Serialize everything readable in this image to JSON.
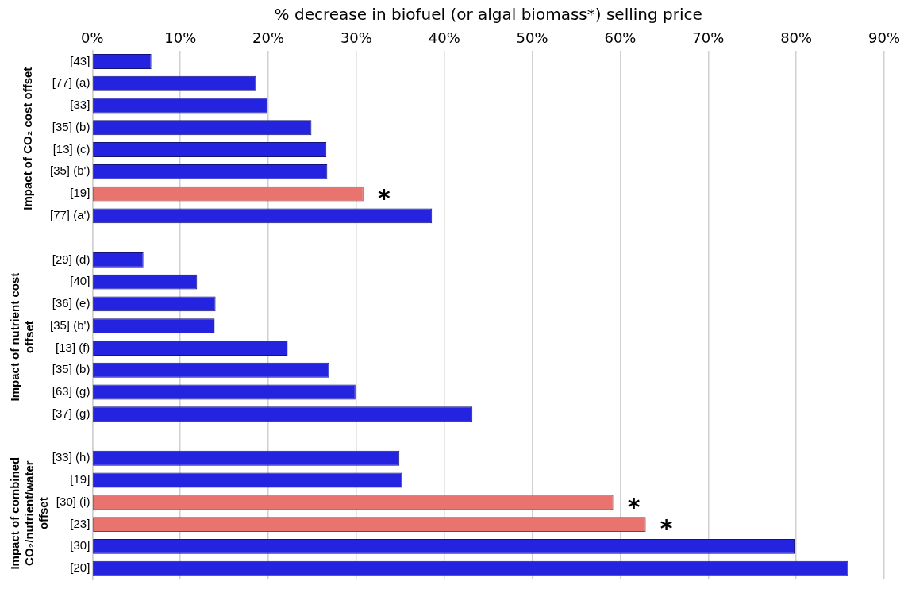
{
  "chart_data": {
    "type": "bar",
    "orientation": "horizontal",
    "xlabel": "% decrease in biofuel (or algal biomass*) selling price",
    "categories": [
      "[43]",
      "[77] (a)",
      "[33]",
      "[35] (b)",
      "[13] (c)",
      "[35] (b')",
      "[19]",
      "[77] (a')",
      null,
      "[29] (d)",
      "[40]",
      "[36] (e)",
      "[35] (b')",
      "[13] (f)",
      "[35] (b)",
      "[63] (g)",
      "[37] (g)",
      null,
      "[33] (h)",
      "[19]",
      "[30] (i)",
      "[23]",
      "[30]",
      "[20]"
    ],
    "values": [
      6.7,
      18.6,
      19.9,
      24.9,
      26.6,
      26.7,
      30.8,
      38.6,
      null,
      5.8,
      11.9,
      14.0,
      13.9,
      22.2,
      26.9,
      29.9,
      43.2,
      null,
      34.9,
      35.2,
      59.2,
      62.9,
      79.9,
      85.9
    ],
    "colors": [
      "#2323e0",
      "#2323e0",
      "#2323e0",
      "#2323e0",
      "#2323e0",
      "#2323e0",
      "#e8736f",
      "#2323e0",
      null,
      "#2323e0",
      "#2323e0",
      "#2323e0",
      "#2323e0",
      "#2323e0",
      "#2323e0",
      "#2323e0",
      "#2323e0",
      null,
      "#2323e0",
      "#2323e0",
      "#e8736f",
      "#e8736f",
      "#2323e0",
      "#2323e0"
    ],
    "xlim": [
      0,
      90
    ],
    "xticks": [
      {
        "value": 0,
        "label": "0%"
      },
      {
        "value": 10,
        "label": "10%"
      },
      {
        "value": 20,
        "label": "20%"
      },
      {
        "value": 30,
        "label": "30%"
      },
      {
        "value": 40,
        "label": "40%"
      },
      {
        "value": 50,
        "label": "50%"
      },
      {
        "value": 60,
        "label": "60%"
      },
      {
        "value": 70,
        "label": "70%"
      },
      {
        "value": 80,
        "label": "80%"
      },
      {
        "value": 90,
        "label": "90%"
      }
    ],
    "grid": "x",
    "legend": false,
    "annotations": [
      "Impact of CO₂ cost offset",
      "Impact of nutrient cost offset",
      "Impact of combined CO₂/nutrient/water offset",
      {
        "text": "*",
        "x": 30.8,
        "y": "[19]"
      },
      {
        "text": "*",
        "x": 59.2,
        "y": "[30] (i)"
      },
      {
        "text": "*",
        "x": 62.9,
        "y": "[23]"
      }
    ]
  }
}
